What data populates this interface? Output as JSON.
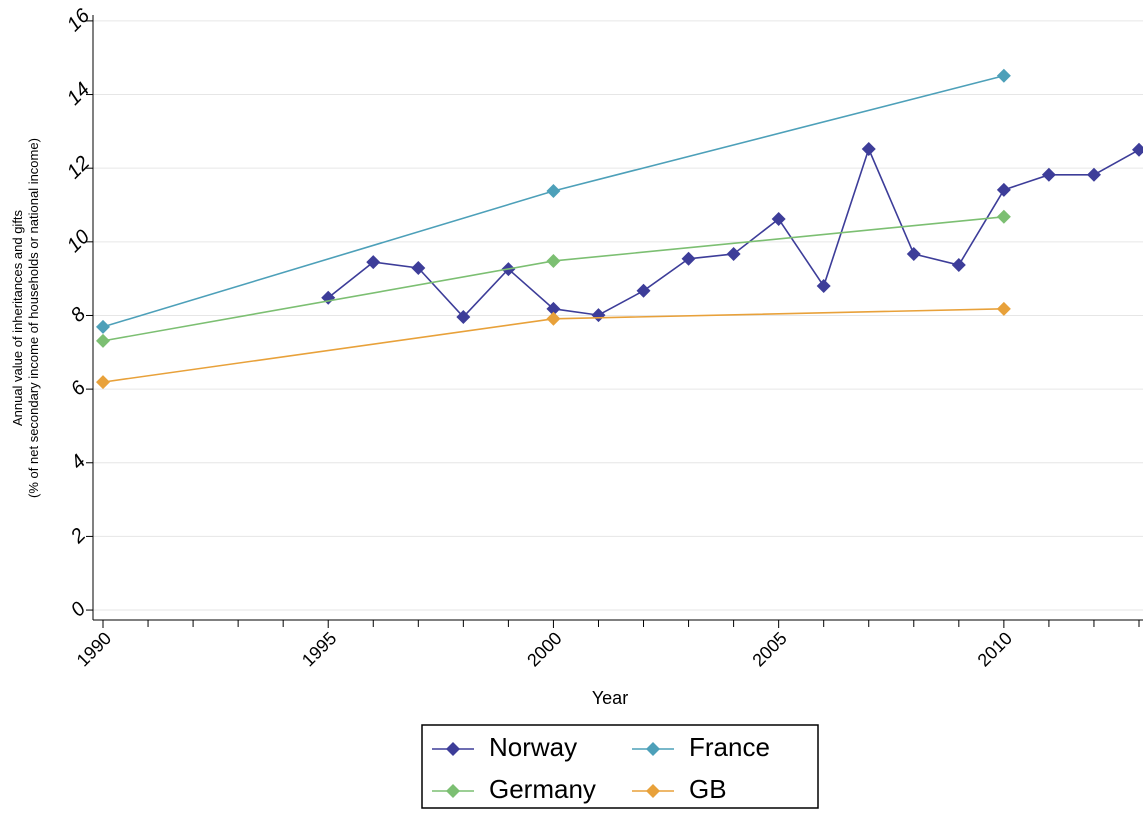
{
  "chart_data": {
    "type": "line",
    "xlabel": "Year",
    "ylabel": [
      "Annual value of inheritances and gifts",
      "(% of net secondary income of households or national income)"
    ],
    "xlim": [
      1990,
      2013
    ],
    "xticks": [
      1990,
      1995,
      2000,
      2005,
      2010
    ],
    "xminorticks": [
      1991,
      1992,
      1993,
      1994,
      1996,
      1997,
      1998,
      1999,
      2001,
      2002,
      2003,
      2004,
      2006,
      2007,
      2008,
      2009,
      2011,
      2012,
      2013
    ],
    "ylim": [
      -0.27,
      16.16
    ],
    "yticks": [
      0,
      2,
      4,
      6,
      8,
      10,
      12,
      14,
      16
    ],
    "grid": true,
    "series": [
      {
        "name": "Norway",
        "color": "#3d3d99",
        "x": [
          1995,
          1996,
          1997,
          1998,
          1999,
          2000,
          2001,
          2002,
          2003,
          2004,
          2005,
          2006,
          2007,
          2008,
          2009,
          2010,
          2011,
          2012,
          2013
        ],
        "values": [
          8.48,
          9.45,
          9.29,
          7.96,
          9.26,
          8.18,
          8.01,
          8.67,
          9.54,
          9.67,
          10.62,
          8.8,
          12.52,
          9.67,
          9.37,
          11.41,
          11.82,
          11.82,
          12.5
        ]
      },
      {
        "name": "France",
        "color": "#4da0b9",
        "x": [
          1990,
          2000,
          2010
        ],
        "values": [
          7.69,
          11.38,
          14.51
        ]
      },
      {
        "name": "Germany",
        "color": "#7cbf72",
        "x": [
          1990,
          2000,
          2010
        ],
        "values": [
          7.31,
          9.48,
          10.68
        ]
      },
      {
        "name": "GB",
        "color": "#e8a13a",
        "x": [
          1990,
          2000,
          2010
        ],
        "values": [
          6.19,
          7.91,
          8.18
        ]
      }
    ]
  }
}
